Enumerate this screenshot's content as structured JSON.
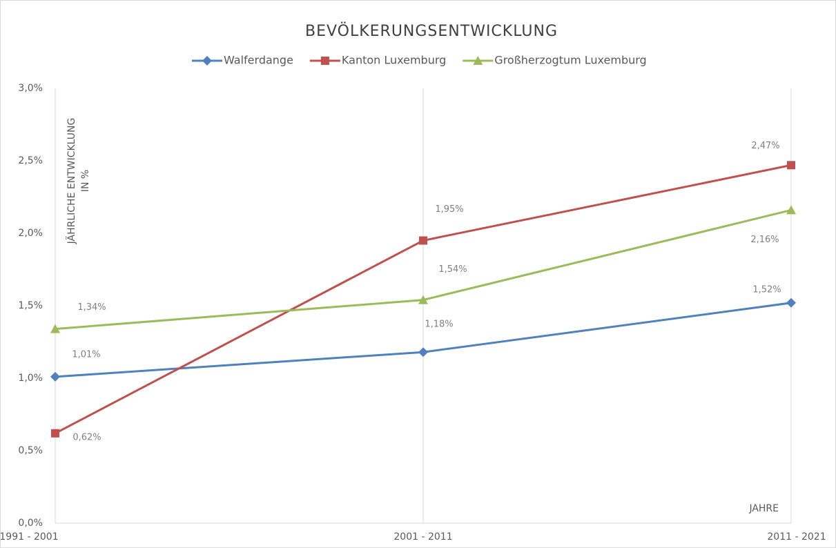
{
  "chart_data": {
    "type": "line",
    "title": "BEVÖLKERUNGSENTWICKLUNG",
    "y_label": [
      "JÄHRLICHE ENTWICKLUNG",
      "IN %"
    ],
    "x_label": "JAHRE",
    "categories": [
      "1991 - 2001",
      "2001 - 2011",
      "2011 - 2021"
    ],
    "series": [
      {
        "name": "Walferdange",
        "color": "#4f81bd",
        "marker": "diamond",
        "values": [
          1.01,
          1.18,
          1.52
        ],
        "value_labels": [
          "1,01%",
          "1,18%",
          "1,52%"
        ]
      },
      {
        "name": "Kanton Luxemburg",
        "color": "#c0504d",
        "marker": "square",
        "values": [
          0.62,
          1.95,
          2.47
        ],
        "value_labels": [
          "0,62%",
          "1,95%",
          "2,47%"
        ]
      },
      {
        "name": "Großherzogtum Luxemburg",
        "color": "#9bbb59",
        "marker": "triangle",
        "values": [
          1.34,
          1.54,
          2.16
        ],
        "value_labels": [
          "1,34%",
          "1,54%",
          "2,16%"
        ]
      }
    ],
    "ylim": [
      0,
      3
    ],
    "yticks": [
      {
        "value": 0,
        "label": "0,0%"
      },
      {
        "value": 0.5,
        "label": "0,5%"
      },
      {
        "value": 1,
        "label": "1,0%"
      },
      {
        "value": 1.5,
        "label": "1,5%"
      },
      {
        "value": 2,
        "label": "2,0%"
      },
      {
        "value": 2.5,
        "label": "2,5%"
      },
      {
        "value": 3,
        "label": "3,0%"
      }
    ],
    "grid": "x",
    "legend": "top"
  }
}
